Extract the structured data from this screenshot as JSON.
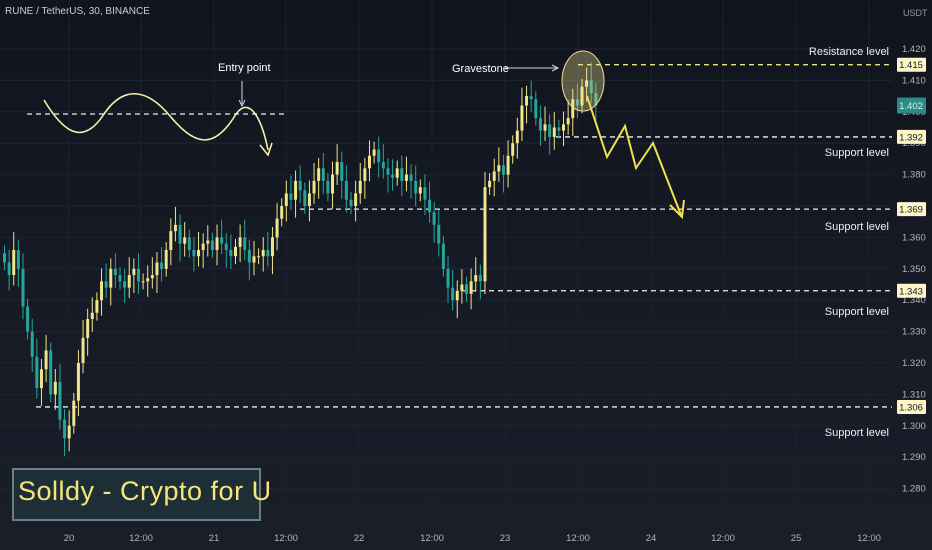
{
  "header": {
    "title": "RUNE / TetherUS, 30, BINANCE",
    "unit": "USDT"
  },
  "watermark": {
    "text": "Solldy - Crypto for U"
  },
  "colors": {
    "up": "#f0e58a",
    "down": "#26a69a",
    "last_tag": "#2a8c86",
    "level_tag": "#fff6c7",
    "path": "#f0e150",
    "curve": "#f6f0a8"
  },
  "chart_data": {
    "type": "candlestick",
    "title": "RUNE / TetherUS, 30, BINANCE",
    "ylabel": "USDT",
    "ylim": [
      1.273,
      1.435
    ],
    "yticks": [
      "1.420",
      "1.410",
      "1.400",
      "1.390",
      "1.380",
      "1.370",
      "1.360",
      "1.350",
      "1.340",
      "1.330",
      "1.320",
      "1.310",
      "1.300",
      "1.290",
      "1.280"
    ],
    "xticks": [
      "20",
      "12:00",
      "21",
      "12:00",
      "22",
      "12:00",
      "23",
      "12:00",
      "24",
      "12:00",
      "25",
      "12:00"
    ],
    "levels": [
      {
        "price": 1.415,
        "tag": "1.415",
        "label": "Resistance level"
      },
      {
        "price": 1.392,
        "tag": "1.392",
        "label": "Support level"
      },
      {
        "price": 1.369,
        "tag": "1.369",
        "label": "Support level"
      },
      {
        "price": 1.343,
        "tag": "1.343",
        "label": "Support level"
      },
      {
        "price": 1.306,
        "tag": "1.306",
        "label": "Support level"
      }
    ],
    "last_price": {
      "price": 1.402,
      "tag": "1.402"
    },
    "annotations": {
      "entry": "Entry point",
      "gravestone": "Gravestone"
    },
    "close_series": [
      1.352,
      1.348,
      1.356,
      1.35,
      1.338,
      1.33,
      1.322,
      1.312,
      1.318,
      1.324,
      1.31,
      1.314,
      1.302,
      1.296,
      1.3,
      1.308,
      1.32,
      1.328,
      1.334,
      1.336,
      1.34,
      1.346,
      1.344,
      1.35,
      1.348,
      1.346,
      1.344,
      1.348,
      1.35,
      1.346,
      1.346,
      1.347,
      1.348,
      1.352,
      1.35,
      1.356,
      1.362,
      1.364,
      1.358,
      1.36,
      1.356,
      1.354,
      1.356,
      1.358,
      1.359,
      1.356,
      1.36,
      1.358,
      1.356,
      1.354,
      1.357,
      1.36,
      1.356,
      1.352,
      1.354,
      1.354,
      1.356,
      1.354,
      1.36,
      1.366,
      1.37,
      1.374,
      1.372,
      1.378,
      1.375,
      1.37,
      1.374,
      1.378,
      1.382,
      1.378,
      1.374,
      1.38,
      1.384,
      1.378,
      1.372,
      1.37,
      1.374,
      1.378,
      1.382,
      1.386,
      1.388,
      1.384,
      1.382,
      1.38,
      1.379,
      1.382,
      1.378,
      1.38,
      1.378,
      1.374,
      1.376,
      1.372,
      1.368,
      1.364,
      1.358,
      1.35,
      1.344,
      1.34,
      1.343,
      1.345,
      1.342,
      1.346,
      1.348,
      1.346,
      1.376,
      1.378,
      1.381,
      1.383,
      1.38,
      1.386,
      1.39,
      1.394,
      1.402,
      1.405,
      1.404,
      1.398,
      1.394,
      1.396,
      1.392,
      1.395,
      1.394,
      1.396,
      1.398,
      1.404,
      1.402,
      1.408,
      1.41,
      1.406,
      1.402
    ]
  }
}
